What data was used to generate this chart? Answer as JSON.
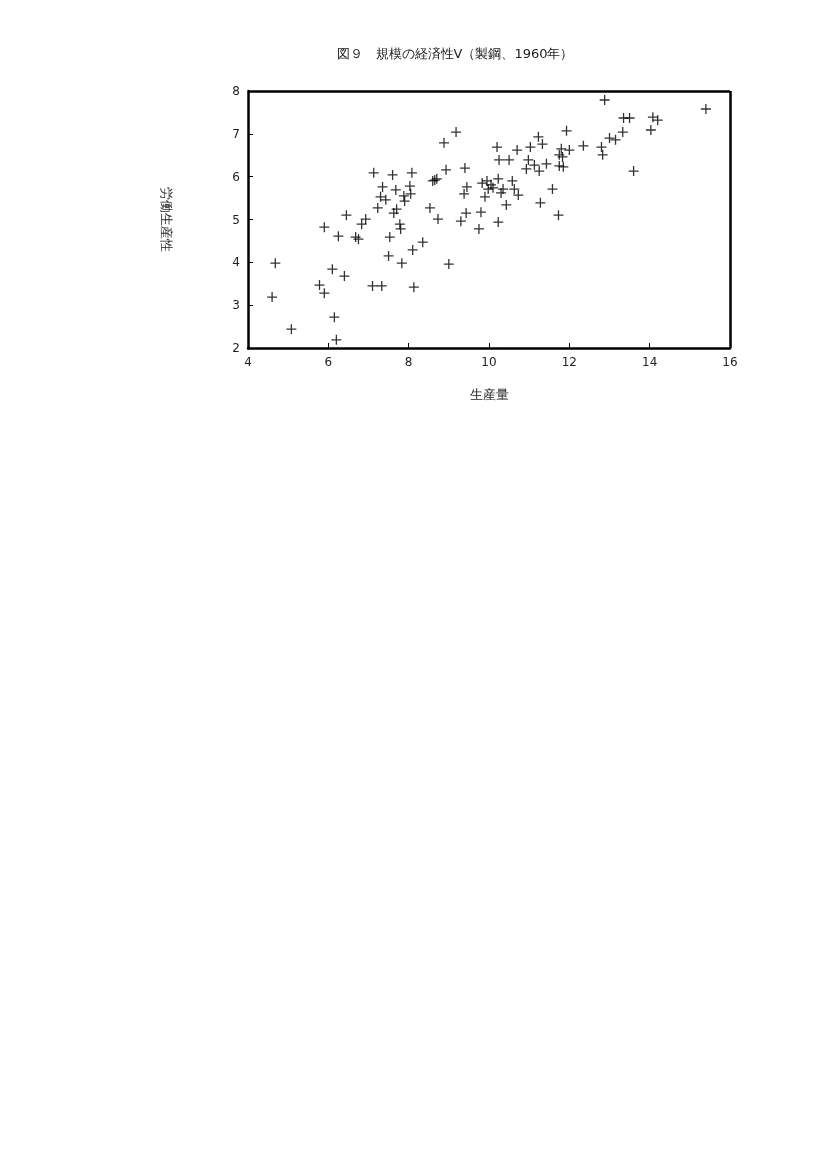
{
  "chart_data": {
    "type": "scatter",
    "title": "図９　規模の経済性Ⅴ（製鋼、1960年）",
    "xlabel": "生産量",
    "ylabel": "労働生産性",
    "x": [
      4.6,
      4.68,
      5.08,
      5.78,
      5.9,
      5.9,
      6.1,
      6.15,
      6.2,
      6.25,
      6.4,
      6.45,
      6.68,
      6.75,
      6.83,
      6.93,
      7.13,
      7.1,
      7.23,
      7.3,
      7.33,
      7.35,
      7.43,
      7.5,
      7.53,
      7.6,
      7.63,
      7.68,
      7.7,
      7.78,
      7.8,
      7.83,
      7.88,
      7.9,
      8.03,
      8.05,
      8.08,
      8.1,
      8.13,
      8.35,
      8.53,
      8.6,
      8.65,
      8.7,
      8.73,
      8.88,
      8.93,
      9.0,
      9.18,
      9.3,
      9.38,
      9.4,
      9.43,
      9.45,
      9.75,
      9.8,
      9.83,
      9.9,
      9.95,
      9.98,
      10.05,
      10.1,
      10.2,
      10.23,
      10.23,
      10.25,
      10.3,
      10.35,
      10.43,
      10.5,
      10.58,
      10.63,
      10.7,
      10.73,
      10.93,
      10.98,
      11.03,
      11.13,
      11.23,
      11.25,
      11.28,
      11.33,
      11.43,
      11.58,
      11.73,
      11.75,
      11.75,
      11.8,
      11.83,
      11.85,
      11.93,
      12.0,
      12.35,
      12.8,
      12.88,
      12.83,
      13.0,
      13.15,
      13.33,
      13.35,
      13.5,
      13.6,
      14.03,
      14.08,
      14.2,
      15.4
    ],
    "values": [
      3.19,
      3.98,
      2.44,
      3.47,
      3.28,
      4.82,
      3.84,
      2.72,
      2.19,
      4.61,
      3.68,
      5.1,
      4.59,
      4.54,
      4.89,
      5.01,
      6.09,
      3.45,
      5.27,
      5.53,
      3.45,
      5.76,
      5.46,
      4.15,
      4.59,
      6.04,
      5.15,
      5.69,
      5.24,
      4.89,
      4.78,
      3.98,
      5.55,
      5.43,
      5.78,
      5.6,
      6.09,
      4.29,
      3.42,
      4.47,
      5.27,
      5.9,
      5.92,
      5.95,
      5.01,
      6.79,
      6.16,
      3.96,
      7.04,
      4.96,
      5.6,
      6.2,
      5.15,
      5.76,
      4.78,
      5.17,
      5.85,
      5.53,
      5.9,
      5.71,
      5.81,
      5.74,
      6.69,
      4.94,
      5.95,
      6.39,
      5.62,
      5.71,
      5.34,
      6.39,
      5.9,
      5.71,
      6.62,
      5.57,
      6.18,
      6.39,
      6.69,
      6.27,
      6.93,
      6.13,
      5.39,
      6.76,
      6.3,
      5.71,
      5.1,
      6.25,
      6.51,
      6.65,
      6.46,
      6.23,
      7.07,
      6.62,
      6.72,
      6.69,
      7.79,
      6.51,
      6.9,
      6.86,
      7.04,
      7.37,
      7.37,
      6.13,
      7.09,
      7.39,
      7.32,
      7.58
    ],
    "color": "#000000",
    "marker": "cross",
    "xlim": [
      4,
      16
    ],
    "xticks": [
      4,
      6,
      8,
      10,
      12,
      14,
      16
    ],
    "ylim": [
      2,
      8
    ],
    "yticks": [
      2,
      3,
      4,
      5,
      6,
      7,
      8
    ],
    "grid": false
  }
}
